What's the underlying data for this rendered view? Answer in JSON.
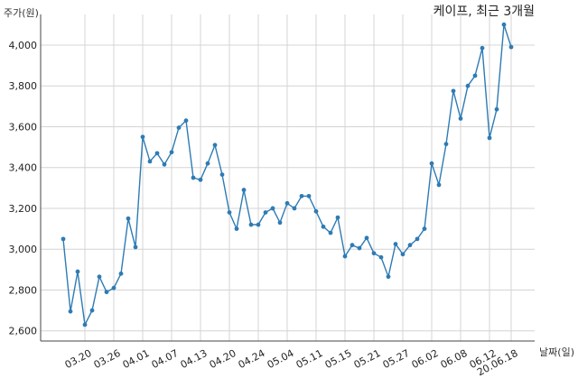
{
  "chart_data": {
    "type": "line",
    "title": "케이프, 최근 3개월",
    "ylabel": "주가(원)",
    "xlabel": "날짜(일)",
    "ylim": [
      2550,
      4150
    ],
    "yticks": [
      2600,
      2800,
      3000,
      3200,
      3400,
      3600,
      3800,
      4000
    ],
    "ytick_labels": [
      "2,600",
      "2,800",
      "3,000",
      "3,200",
      "3,400",
      "3,600",
      "3,800",
      "4,000"
    ],
    "xticks": [
      {
        "index": 3,
        "label": "03.20"
      },
      {
        "index": 7,
        "label": "03.26"
      },
      {
        "index": 11,
        "label": "04.01"
      },
      {
        "index": 15,
        "label": "04.07"
      },
      {
        "index": 19,
        "label": "04.13"
      },
      {
        "index": 23,
        "label": "04.20"
      },
      {
        "index": 27,
        "label": "04.24"
      },
      {
        "index": 31,
        "label": "05.04"
      },
      {
        "index": 35,
        "label": "05.11"
      },
      {
        "index": 39,
        "label": "05.15"
      },
      {
        "index": 43,
        "label": "05.21"
      },
      {
        "index": 47,
        "label": "05.27"
      },
      {
        "index": 51,
        "label": "06.02"
      },
      {
        "index": 55,
        "label": "06.08"
      },
      {
        "index": 59,
        "label": "06.12"
      },
      {
        "index": 62,
        "label": "20.06.18"
      }
    ],
    "grid": true,
    "color": "#2e7bb4",
    "series": [
      {
        "values": [
          3050,
          2695,
          2890,
          2630,
          2700,
          2865,
          2790,
          2810,
          2880,
          3150,
          3010,
          3550,
          3430,
          3470,
          3415,
          3475,
          3595,
          3630,
          3350,
          3340,
          3420,
          3510,
          3365,
          3180,
          3100,
          3290,
          3120,
          3120,
          3180,
          3200,
          3130,
          3225,
          3200,
          3260,
          3260,
          3185,
          3110,
          3080,
          3155,
          2965,
          3020,
          3005,
          3055,
          2980,
          2960,
          2865,
          3025,
          2975,
          3020,
          3050,
          3100,
          3420,
          3315,
          3515,
          3775,
          3640,
          3800,
          3850,
          3985,
          3545,
          3685,
          4100,
          3990
        ]
      }
    ]
  }
}
